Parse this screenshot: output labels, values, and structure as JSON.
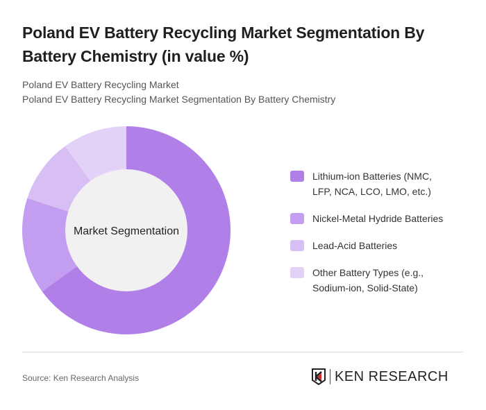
{
  "title": "Poland EV Battery Recycling Market Segmentation By Battery Chemistry (in value %)",
  "subtitle_1": "Poland EV Battery Recycling Market",
  "subtitle_2": "Poland EV Battery Recycling Market Segmentation By Battery Chemistry",
  "chart_data": {
    "type": "pie",
    "variant": "donut",
    "center_label": "Market Segmentation",
    "categories": [
      "Lithium-ion Batteries (NMC, LFP, NCA, LCO, LMO, etc.)",
      "Nickel-Metal Hydride Batteries",
      "Lead-Acid Batteries",
      "Other Battery Types (e.g., Sodium-ion, Solid-State)"
    ],
    "values": [
      65,
      15,
      10,
      10
    ],
    "colors": [
      "#b07fe8",
      "#c39ef0",
      "#d7bff5",
      "#e3d2f8"
    ],
    "legend_position": "right"
  },
  "legend": [
    {
      "line1": "Lithium-ion Batteries (NMC,",
      "line2": "LFP, NCA, LCO, LMO, etc.)"
    },
    {
      "line1": "Nickel-Metal Hydride Batteries",
      "line2": ""
    },
    {
      "line1": "Lead-Acid Batteries",
      "line2": ""
    },
    {
      "line1": "Other Battery Types (e.g.,",
      "line2": "Sodium-ion, Solid-State)"
    }
  ],
  "source": "Source: Ken Research Analysis",
  "logo_text": "KEN RESEARCH"
}
